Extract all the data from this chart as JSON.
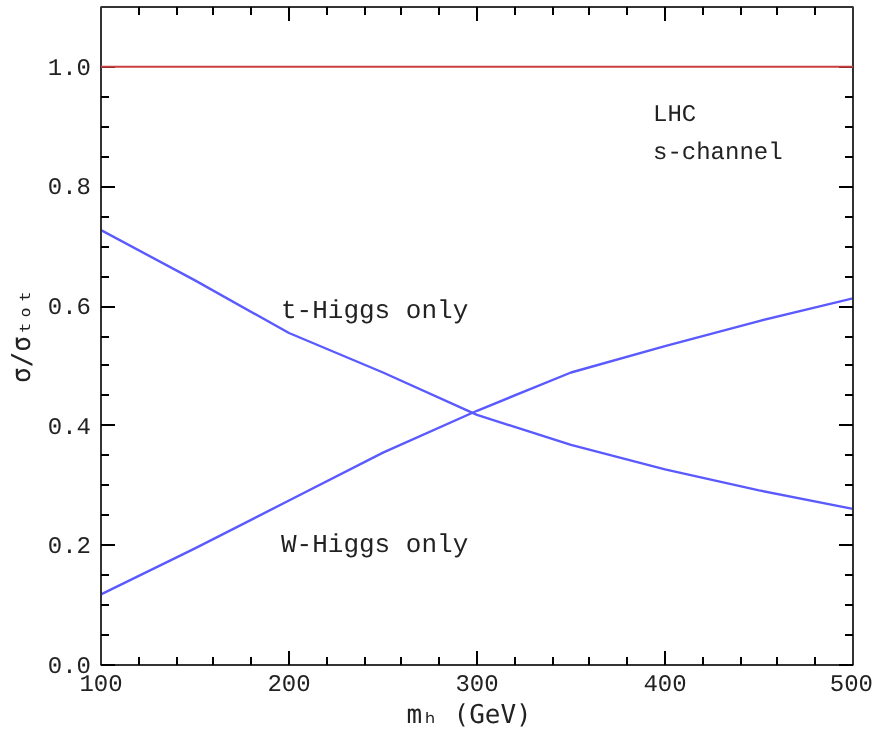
{
  "chart_data": {
    "type": "line",
    "xlabel": "mₕ  (GeV)",
    "ylabel": "σ/σₜₒₜ",
    "x": [
      100,
      150,
      200,
      250,
      300,
      350,
      400,
      450,
      500
    ],
    "series": [
      {
        "name": "t-Higgs only",
        "color": "#5a5aff",
        "values": [
          0.727,
          0.643,
          0.555,
          0.489,
          0.418,
          0.368,
          0.327,
          0.292,
          0.261
        ]
      },
      {
        "name": "W-Higgs only",
        "color": "#5a5aff",
        "values": [
          0.118,
          0.195,
          0.275,
          0.355,
          0.425,
          0.489,
          0.533,
          0.575,
          0.613
        ]
      }
    ],
    "xlim": [
      100,
      500
    ],
    "xticks": [
      100,
      200,
      300,
      400,
      500
    ],
    "ylim": [
      0,
      1.1
    ],
    "yticks": [
      {
        "value": 0,
        "label": "0.0"
      },
      0.2,
      0.4,
      0.6,
      0.8,
      {
        "value": 1,
        "label": "1.0"
      }
    ],
    "ref_lines": [
      {
        "axis": "y",
        "value": 1.0,
        "label": null,
        "color": "#c84040"
      }
    ],
    "annotations": [
      "LHC",
      "s-channel"
    ],
    "grid": false,
    "legend": false,
    "marker": "none",
    "line_style": "solid"
  }
}
